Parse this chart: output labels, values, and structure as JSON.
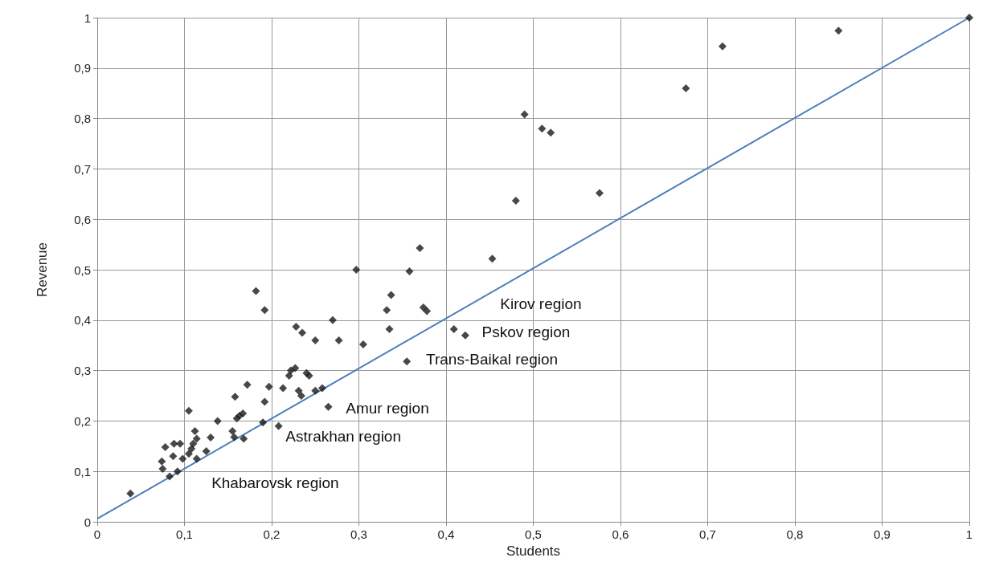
{
  "chart_data": {
    "type": "scatter",
    "xlabel": "Students",
    "ylabel": "Revenue",
    "marker": "diamond",
    "grid": true,
    "xlim": [
      0,
      1
    ],
    "ylim": [
      0,
      1
    ],
    "xticks": [
      0,
      {
        "value": 0.1,
        "label": "0,1"
      },
      {
        "value": 0.2,
        "label": "0,2"
      },
      {
        "value": 0.3,
        "label": "0,3"
      },
      {
        "value": 0.4,
        "label": "0,4"
      },
      {
        "value": 0.5,
        "label": "0,5"
      },
      {
        "value": 0.6,
        "label": "0,6"
      },
      {
        "value": 0.7,
        "label": "0,7"
      },
      {
        "value": 0.8,
        "label": "0,8"
      },
      {
        "value": 0.9,
        "label": "0,9"
      },
      1
    ],
    "yticks": [
      0,
      {
        "value": 0.1,
        "label": "0,1"
      },
      {
        "value": 0.2,
        "label": "0,2"
      },
      {
        "value": 0.3,
        "label": "0,3"
      },
      {
        "value": 0.4,
        "label": "0,4"
      },
      {
        "value": 0.5,
        "label": "0,5"
      },
      {
        "value": 0.6,
        "label": "0,6"
      },
      {
        "value": 0.7,
        "label": "0,7"
      },
      {
        "value": 0.8,
        "label": "0,8"
      },
      {
        "value": 0.9,
        "label": "0,9"
      },
      1
    ],
    "series": [
      {
        "color": "#1a1a1a",
        "x": [
          0.038,
          0.074,
          0.075,
          0.078,
          0.083,
          0.087,
          0.088,
          0.092,
          0.095,
          0.098,
          0.105,
          0.105,
          0.108,
          0.11,
          0.112,
          0.114,
          0.114,
          0.125,
          0.13,
          0.138,
          0.155,
          0.157,
          0.158,
          0.16,
          0.163,
          0.167,
          0.168,
          0.172,
          0.19,
          0.192,
          0.197,
          0.208,
          0.213,
          0.22,
          0.222,
          0.227,
          0.231,
          0.234,
          0.24,
          0.243,
          0.25,
          0.258,
          0.265,
          0.182,
          0.192,
          0.228,
          0.235,
          0.25,
          0.27,
          0.277,
          0.297,
          0.305,
          0.332,
          0.335,
          0.337,
          0.355,
          0.358,
          0.37,
          0.374,
          0.378,
          0.409,
          0.422,
          0.453,
          0.48,
          0.49,
          0.51,
          0.52,
          0.576,
          0.675,
          0.717,
          0.85,
          1
        ],
        "values": [
          0.056,
          0.12,
          0.105,
          0.148,
          0.09,
          0.13,
          0.155,
          0.1,
          0.155,
          0.125,
          0.22,
          0.135,
          0.145,
          0.155,
          0.18,
          0.165,
          0.125,
          0.14,
          0.167,
          0.2,
          0.18,
          0.168,
          0.248,
          0.205,
          0.21,
          0.215,
          0.165,
          0.272,
          0.197,
          0.238,
          0.268,
          0.19,
          0.265,
          0.29,
          0.3,
          0.305,
          0.26,
          0.25,
          0.295,
          0.29,
          0.26,
          0.265,
          0.228,
          0.458,
          0.42,
          0.387,
          0.375,
          0.36,
          0.4,
          0.36,
          0.5,
          0.352,
          0.42,
          0.382,
          0.45,
          0.318,
          0.497,
          0.543,
          0.425,
          0.418,
          0.382,
          0.37,
          0.522,
          0.637,
          0.808,
          0.78,
          0.772,
          0.652,
          0.86,
          0.943,
          0.974,
          1
        ]
      },
      {
        "type": "line",
        "color": "#4a7ebb",
        "x": [
          0,
          1
        ],
        "values": [
          0.006,
          1
        ],
        "marker": "none"
      }
    ],
    "annotations": [
      "Kirov region",
      "Pskov region",
      "Trans-Baikal region",
      "Amur region",
      "Astrakhan region",
      "Khabarovsk region"
    ]
  }
}
